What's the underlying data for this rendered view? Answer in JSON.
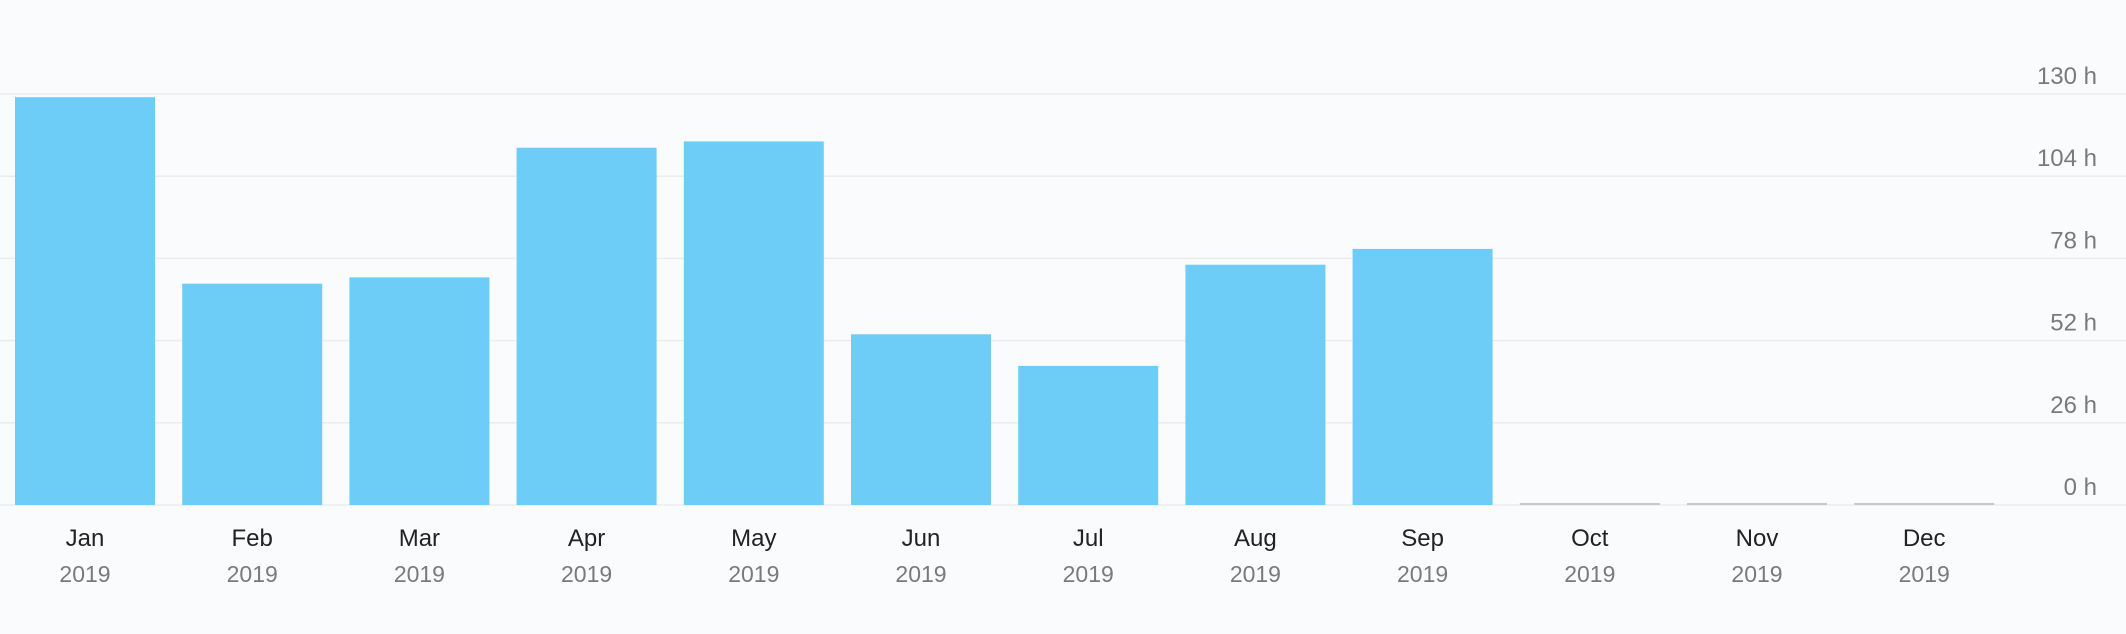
{
  "chart_data": {
    "type": "bar",
    "title": "",
    "xlabel": "",
    "ylabel": "",
    "unit": "h",
    "categories": [
      "Jan",
      "Feb",
      "Mar",
      "Apr",
      "May",
      "Jun",
      "Jul",
      "Aug",
      "Sep",
      "Oct",
      "Nov",
      "Dec"
    ],
    "category_sublabels": [
      "2019",
      "2019",
      "2019",
      "2019",
      "2019",
      "2019",
      "2019",
      "2019",
      "2019",
      "2019",
      "2019",
      "2019"
    ],
    "values": [
      129,
      70,
      72,
      113,
      115,
      54,
      44,
      76,
      81,
      0,
      0,
      0
    ],
    "ylim": [
      0,
      130
    ],
    "yticks": [
      0,
      26,
      52,
      78,
      104,
      130
    ],
    "ytick_labels": [
      "0 h",
      "26 h",
      "52 h",
      "78 h",
      "104 h",
      "130 h"
    ],
    "y_axis_position": "right",
    "grid": true,
    "legend": "none",
    "colors": {
      "bar": "#6ecdf6",
      "zero_bar": "#c8c8c8",
      "grid": "#ececec",
      "background": "#f9fbfd"
    }
  }
}
